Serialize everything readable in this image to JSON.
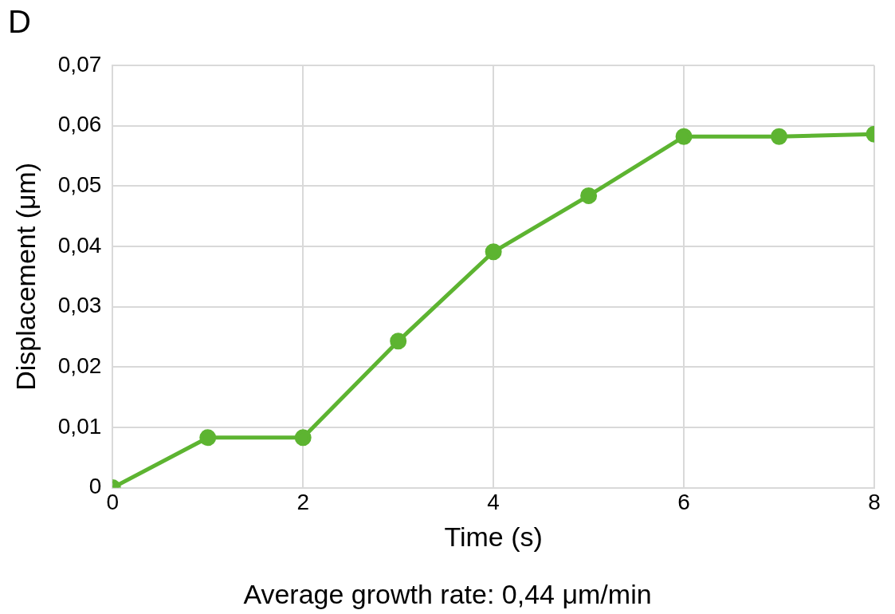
{
  "chart_data": {
    "type": "line",
    "title": "D",
    "xlabel": "Time (s)",
    "ylabel": "Displacement (μm)",
    "x": [
      0,
      1,
      2,
      3,
      4,
      5,
      6,
      7,
      8
    ],
    "series": [
      {
        "color": "#5db431",
        "values": [
          0,
          0.0083,
          0.0083,
          0.0243,
          0.0391,
          0.0484,
          0.0582,
          0.0582,
          0.0586
        ]
      }
    ],
    "xlim": [
      0,
      8
    ],
    "xticks": [
      0,
      2,
      4,
      6,
      8
    ],
    "ylim": [
      0,
      0.07
    ],
    "yticks": [
      0,
      {
        "value": 0.01,
        "label": "0,01"
      },
      {
        "value": 0.02,
        "label": "0,02"
      },
      {
        "value": 0.03,
        "label": "0,03"
      },
      {
        "value": 0.04,
        "label": "0,04"
      },
      {
        "value": 0.05,
        "label": "0,05"
      },
      {
        "value": 0.06,
        "label": "0,06"
      },
      {
        "value": 0.07,
        "label": "0,07"
      }
    ],
    "grid": true,
    "legend": false,
    "marker": "circle",
    "line_style": "solid",
    "annotations": [
      "Average growth rate: 0,44 μm/min"
    ]
  }
}
